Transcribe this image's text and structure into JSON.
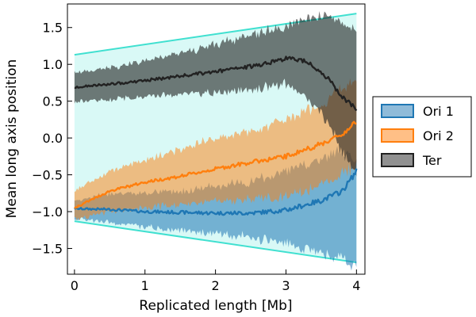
{
  "chart_data": {
    "type": "area",
    "title": "",
    "xlabel": "Replicated length [Mb]",
    "ylabel": "Mean long axis position",
    "xlim": [
      -0.1,
      4.12
    ],
    "ylim": [
      -1.85,
      1.82
    ],
    "xticks": [
      0,
      1,
      2,
      3,
      4
    ],
    "xtick_labels": [
      "0",
      "1",
      "2",
      "3",
      "4"
    ],
    "yticks": [
      -1.5,
      -1.0,
      -0.5,
      0.0,
      0.5,
      1.0,
      1.5
    ],
    "ytick_labels": [
      "−1.5",
      "−1.0",
      "−0.5",
      "0.0",
      "0.5",
      "1.0",
      "1.5"
    ],
    "grid": false,
    "legend_position": "right, outside plot",
    "envelope": {
      "color": "#40e0d0",
      "x": [
        0,
        4
      ],
      "upper": [
        1.13,
        1.69
      ],
      "lower": [
        -1.13,
        -1.69
      ]
    },
    "series": [
      {
        "name": "Ori 1",
        "color": "#1f77b4",
        "x": [
          0,
          0.5,
          1,
          1.5,
          2,
          2.5,
          3,
          3.5,
          3.8,
          4.0
        ],
        "mean": [
          -0.96,
          -0.97,
          -1.0,
          -1.01,
          -1.02,
          -1.02,
          -0.98,
          -0.85,
          -0.72,
          -0.45
        ],
        "upper": [
          -0.85,
          -0.75,
          -0.75,
          -0.72,
          -0.65,
          -0.6,
          -0.45,
          -0.3,
          -0.15,
          -0.35
        ],
        "lower": [
          -1.1,
          -1.15,
          -1.2,
          -1.26,
          -1.3,
          -1.35,
          -1.42,
          -1.55,
          -1.65,
          -1.75
        ]
      },
      {
        "name": "Ori 2",
        "color": "#ff7f0e",
        "x": [
          0,
          0.5,
          1,
          1.5,
          2,
          2.5,
          3,
          3.5,
          3.8,
          4.0
        ],
        "mean": [
          -0.95,
          -0.72,
          -0.6,
          -0.52,
          -0.42,
          -0.33,
          -0.25,
          -0.08,
          0.05,
          0.22
        ],
        "upper": [
          -0.72,
          -0.45,
          -0.3,
          -0.15,
          0.0,
          0.08,
          0.25,
          0.45,
          0.7,
          0.82
        ],
        "lower": [
          -1.1,
          -1.0,
          -0.95,
          -0.9,
          -0.85,
          -0.82,
          -0.8,
          -0.65,
          -0.5,
          -0.4
        ]
      },
      {
        "name": "Ter",
        "color": "#222222",
        "x": [
          0,
          0.5,
          1,
          1.5,
          2,
          2.5,
          3,
          3.3,
          3.6,
          3.8,
          4.0
        ],
        "mean": [
          0.69,
          0.73,
          0.78,
          0.84,
          0.9,
          0.97,
          1.08,
          1.05,
          0.8,
          0.55,
          0.38
        ],
        "upper": [
          0.88,
          0.95,
          1.05,
          1.15,
          1.27,
          1.4,
          1.52,
          1.63,
          1.67,
          1.55,
          1.4
        ],
        "lower": [
          0.5,
          0.52,
          0.55,
          0.6,
          0.62,
          0.65,
          0.72,
          0.55,
          0.2,
          -0.2,
          -0.45
        ]
      }
    ]
  }
}
